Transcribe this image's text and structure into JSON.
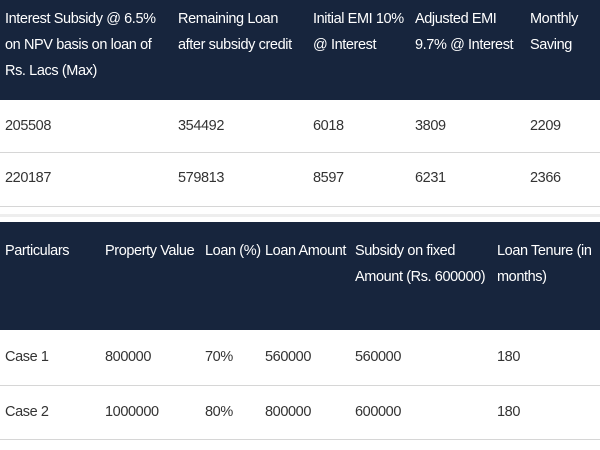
{
  "tables": [
    {
      "header": [
        "Interest Subsidy @ 6.5% on NPV basis on loan of Rs. Lacs (Max)",
        "Remaining Loan after subsidy credit",
        "Initial EMI 10% @ Interest",
        "Adjusted EMI 9.7% @ Interest",
        "Monthly Saving"
      ],
      "rows": [
        [
          "205508",
          "354492",
          "6018",
          "3809",
          "2209"
        ],
        [
          "220187",
          "579813",
          "8597",
          "6231",
          "2366"
        ]
      ]
    },
    {
      "header": [
        "Particulars",
        "Property Value",
        "Loan (%)",
        "Loan Amount",
        "Subsidy on fixed Amount (Rs. 600000)",
        "Loan Tenure (in months)"
      ],
      "rows": [
        [
          "Case 1",
          "800000",
          "70%",
          "560000",
          "560000",
          "180"
        ],
        [
          "Case 2",
          "1000000",
          "80%",
          "800000",
          "600000",
          "180"
        ]
      ]
    }
  ]
}
